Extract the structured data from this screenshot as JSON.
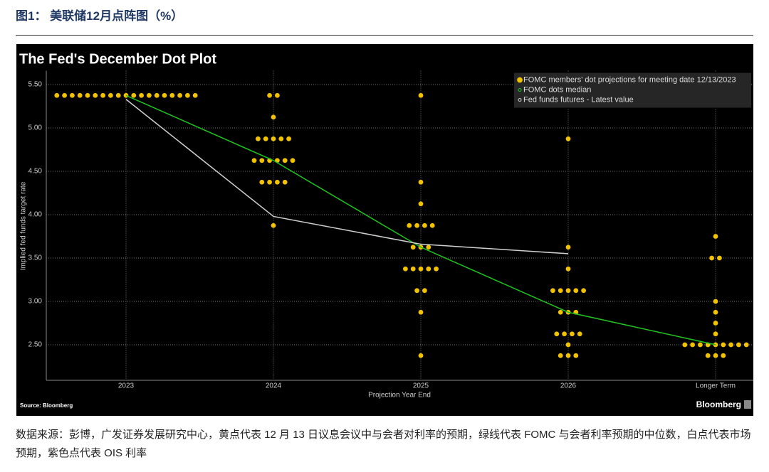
{
  "figure_caption": "图1： 美联储12月点阵图（%）",
  "source_note": "数据来源：彭博，广发证券发展研究中心，黄点代表 12 月 13 日议息会议中与会者对利率的预期，绿线代表 FOMC 与会者利率预期的中位数，白点代表市场预期，紫色点代表 OIS 利率",
  "chart_data": {
    "type": "dot_plot",
    "title": "The Fed's December Dot Plot",
    "x_label": "Projection Year End",
    "y_label": "Implied fed funds target rate",
    "source": "Source: Bloomberg",
    "brand": "Bloomberg",
    "categories": [
      "2023",
      "2024",
      "2025",
      "2026",
      "Longer Term"
    ],
    "ylim": [
      2.09,
      5.66
    ],
    "yticks": [
      {
        "value": 2.5,
        "label": "2.50"
      },
      {
        "value": 3,
        "label": "3.00"
      },
      {
        "value": 3.5,
        "label": "3.50"
      },
      {
        "value": 4,
        "label": "4.00"
      },
      {
        "value": 4.5,
        "label": "4.50"
      },
      {
        "value": 5,
        "label": "5.00"
      },
      {
        "value": 5.5,
        "label": "5.50"
      }
    ],
    "grid": true,
    "legend": "upper right",
    "series": [
      {
        "name": "FOMC members' dot projections for meeting date 12/13/2023",
        "color": "#f2c200",
        "kind": "dots",
        "x": [
          "2023",
          "2023",
          "2023",
          "2023",
          "2023",
          "2023",
          "2023",
          "2023",
          "2023",
          "2023",
          "2023",
          "2023",
          "2023",
          "2023",
          "2023",
          "2023",
          "2023",
          "2023",
          "2023",
          "2024",
          "2024",
          "2024",
          "2024",
          "2024",
          "2024",
          "2024",
          "2024",
          "2024",
          "2024",
          "2024",
          "2024",
          "2024",
          "2024",
          "2024",
          "2024",
          "2024",
          "2024",
          "2024",
          "2025",
          "2025",
          "2025",
          "2025",
          "2025",
          "2025",
          "2025",
          "2025",
          "2025",
          "2025",
          "2025",
          "2025",
          "2025",
          "2025",
          "2025",
          "2025",
          "2025",
          "2025",
          "2025",
          "2026",
          "2026",
          "2026",
          "2026",
          "2026",
          "2026",
          "2026",
          "2026",
          "2026",
          "2026",
          "2026",
          "2026",
          "2026",
          "2026",
          "2026",
          "2026",
          "2026",
          "2026",
          "2026",
          "Longer Term",
          "Longer Term",
          "Longer Term",
          "Longer Term",
          "Longer Term",
          "Longer Term",
          "Longer Term",
          "Longer Term",
          "Longer Term",
          "Longer Term",
          "Longer Term",
          "Longer Term",
          "Longer Term",
          "Longer Term",
          "Longer Term",
          "Longer Term",
          "Longer Term",
          "Longer Term",
          "Longer Term"
        ],
        "values": [
          5.375,
          5.375,
          5.375,
          5.375,
          5.375,
          5.375,
          5.375,
          5.375,
          5.375,
          5.375,
          5.375,
          5.375,
          5.375,
          5.375,
          5.375,
          5.375,
          5.375,
          5.375,
          5.375,
          5.375,
          5.375,
          5.125,
          4.875,
          4.875,
          4.875,
          4.875,
          4.875,
          4.625,
          4.625,
          4.625,
          4.625,
          4.625,
          4.625,
          4.375,
          4.375,
          4.375,
          4.375,
          3.875,
          5.375,
          4.375,
          4.125,
          3.875,
          3.875,
          3.875,
          3.875,
          3.625,
          3.625,
          3.625,
          3.375,
          3.375,
          3.375,
          3.375,
          3.375,
          3.125,
          3.125,
          2.875,
          2.375,
          4.875,
          3.625,
          3.375,
          3.125,
          3.125,
          3.125,
          3.125,
          3.125,
          2.875,
          2.875,
          2.875,
          2.625,
          2.625,
          2.625,
          2.625,
          2.5,
          2.375,
          2.375,
          2.375,
          3.75,
          3.5,
          3.5,
          3.0,
          2.875,
          2.75,
          2.625,
          2.5,
          2.5,
          2.5,
          2.5,
          2.5,
          2.5,
          2.5,
          2.5,
          2.5,
          2.375,
          2.375,
          2.375
        ]
      },
      {
        "name": "FOMC dots median",
        "color": "#1fc41f",
        "kind": "line",
        "values": [
          5.375,
          4.625,
          3.625,
          2.875,
          2.5
        ]
      },
      {
        "name": "Fed funds futures - Latest value",
        "color": "#d0d0d0",
        "kind": "line",
        "values": [
          5.33,
          3.98,
          3.66,
          3.55,
          null
        ]
      }
    ]
  }
}
